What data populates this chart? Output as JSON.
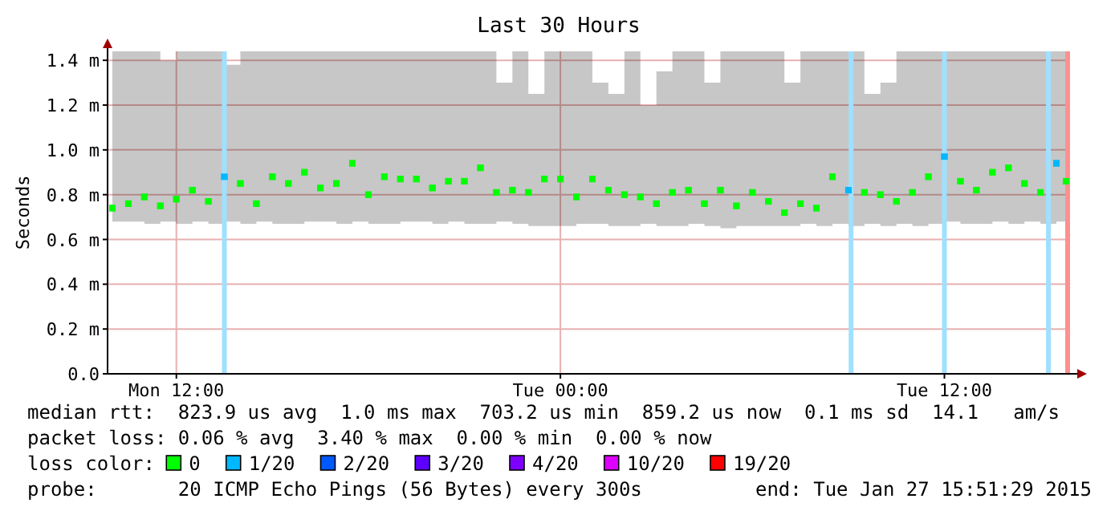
{
  "chart_data": {
    "type": "scatter",
    "title": "Last 30 Hours",
    "ylabel": "Seconds",
    "marker": "square",
    "grid": true,
    "legend": "bottom",
    "legend_title": "loss color:",
    "x": [
      "2015-01-26T10:00",
      "2015-01-26T10:30",
      "2015-01-26T11:00",
      "2015-01-26T11:30",
      "2015-01-26T12:00",
      "2015-01-26T12:30",
      "2015-01-26T13:00",
      "2015-01-26T13:30",
      "2015-01-26T14:00",
      "2015-01-26T14:30",
      "2015-01-26T15:00",
      "2015-01-26T15:30",
      "2015-01-26T16:00",
      "2015-01-26T16:30",
      "2015-01-26T17:00",
      "2015-01-26T17:30",
      "2015-01-26T18:00",
      "2015-01-26T18:30",
      "2015-01-26T19:00",
      "2015-01-26T19:30",
      "2015-01-26T20:00",
      "2015-01-26T20:30",
      "2015-01-26T21:00",
      "2015-01-26T21:30",
      "2015-01-26T22:00",
      "2015-01-26T22:30",
      "2015-01-26T23:00",
      "2015-01-26T23:30",
      "2015-01-27T00:00",
      "2015-01-27T00:30",
      "2015-01-27T01:00",
      "2015-01-27T01:30",
      "2015-01-27T02:00",
      "2015-01-27T02:30",
      "2015-01-27T03:00",
      "2015-01-27T03:30",
      "2015-01-27T04:00",
      "2015-01-27T04:30",
      "2015-01-27T05:00",
      "2015-01-27T05:30",
      "2015-01-27T06:00",
      "2015-01-27T06:30",
      "2015-01-27T07:00",
      "2015-01-27T07:30",
      "2015-01-27T08:00",
      "2015-01-27T08:30",
      "2015-01-27T09:00",
      "2015-01-27T09:30",
      "2015-01-27T10:00",
      "2015-01-27T10:30",
      "2015-01-27T11:00",
      "2015-01-27T11:30",
      "2015-01-27T12:00",
      "2015-01-27T12:30",
      "2015-01-27T13:00",
      "2015-01-27T13:30",
      "2015-01-27T14:00",
      "2015-01-27T14:30",
      "2015-01-27T15:00",
      "2015-01-27T15:30",
      "2015-01-27T15:48"
    ],
    "xlim": [
      "2015-01-26T09:51",
      "2015-01-27T15:51"
    ],
    "xticks": [
      {
        "value": "2015-01-26T12:00",
        "label": "Mon 12:00"
      },
      {
        "value": "2015-01-27T00:00",
        "label": "Tue 00:00"
      },
      {
        "value": "2015-01-27T12:00",
        "label": "Tue 12:00"
      }
    ],
    "ylim": [
      0,
      1.44
    ],
    "yticks": [
      {
        "value": 0,
        "label": "0.0"
      },
      {
        "value": 0.2,
        "label": "0.2 m"
      },
      {
        "value": 0.4,
        "label": "0.4 m"
      },
      {
        "value": 0.6,
        "label": "0.6 m"
      },
      {
        "value": 0.8,
        "label": "0.8 m"
      },
      {
        "value": 1.0,
        "label": "1.0 m"
      },
      {
        "value": 1.2,
        "label": "1.2 m"
      },
      {
        "value": 1.4,
        "label": "1.4 m"
      }
    ],
    "series": [
      {
        "name": "0",
        "color": "#00ff00",
        "values": [
          0.74,
          0.76,
          0.79,
          0.75,
          0.78,
          0.82,
          0.77,
          null,
          0.85,
          0.76,
          0.88,
          0.85,
          0.9,
          0.83,
          0.85,
          0.94,
          0.8,
          0.88,
          0.87,
          0.87,
          0.83,
          0.86,
          0.86,
          0.92,
          0.81,
          0.82,
          0.81,
          0.87,
          0.87,
          0.79,
          0.87,
          0.82,
          0.8,
          0.79,
          0.76,
          0.81,
          0.82,
          0.76,
          0.82,
          0.75,
          0.81,
          0.77,
          0.72,
          0.76,
          0.74,
          0.88,
          null,
          0.81,
          0.8,
          0.77,
          0.81,
          0.88,
          null,
          0.86,
          0.82,
          0.9,
          0.92,
          0.85,
          0.81,
          null,
          0.86
        ],
        "lower": [
          0.68,
          0.68,
          0.67,
          0.68,
          0.67,
          0.68,
          0.67,
          0.68,
          0.67,
          0.68,
          0.67,
          0.67,
          0.68,
          0.68,
          0.67,
          0.68,
          0.67,
          0.67,
          0.68,
          0.68,
          0.67,
          0.68,
          0.67,
          0.67,
          0.68,
          0.67,
          0.66,
          0.66,
          0.66,
          0.67,
          0.67,
          0.66,
          0.66,
          0.67,
          0.66,
          0.66,
          0.67,
          0.66,
          0.65,
          0.66,
          0.66,
          0.66,
          0.66,
          0.67,
          0.66,
          0.67,
          0.66,
          0.67,
          0.66,
          0.67,
          0.66,
          0.67,
          0.68,
          0.67,
          0.67,
          0.68,
          0.67,
          0.68,
          0.67,
          0.68,
          0.68
        ],
        "upper": [
          1.44,
          1.44,
          1.44,
          1.4,
          1.44,
          1.44,
          1.44,
          1.38,
          1.44,
          1.44,
          1.44,
          1.44,
          1.44,
          1.44,
          1.44,
          1.44,
          1.44,
          1.44,
          1.44,
          1.44,
          1.44,
          1.44,
          1.44,
          1.44,
          1.3,
          1.44,
          1.25,
          1.44,
          1.44,
          1.44,
          1.3,
          1.25,
          1.44,
          1.2,
          1.35,
          1.44,
          1.44,
          1.3,
          1.44,
          1.44,
          1.44,
          1.44,
          1.3,
          1.44,
          1.44,
          1.44,
          1.44,
          1.25,
          1.3,
          1.44,
          1.44,
          1.44,
          1.44,
          1.44,
          1.44,
          1.44,
          1.44,
          1.44,
          1.44,
          1.44,
          1.44
        ]
      },
      {
        "name": "1/20",
        "color": "#00b8ff",
        "values": [
          null,
          null,
          null,
          null,
          null,
          null,
          null,
          0.88,
          null,
          null,
          null,
          null,
          null,
          null,
          null,
          null,
          null,
          null,
          null,
          null,
          null,
          null,
          null,
          null,
          null,
          null,
          null,
          null,
          null,
          null,
          null,
          null,
          null,
          null,
          null,
          null,
          null,
          null,
          null,
          null,
          null,
          null,
          null,
          null,
          null,
          null,
          0.82,
          null,
          null,
          null,
          null,
          null,
          0.97,
          null,
          null,
          null,
          null,
          null,
          null,
          0.94,
          null
        ]
      },
      {
        "name": "2/20",
        "color": "#0059ff",
        "values": [
          null,
          null,
          null,
          null,
          null,
          null,
          null,
          null,
          null,
          null,
          null,
          null,
          null,
          null,
          null,
          null,
          null,
          null,
          null,
          null,
          null,
          null,
          null,
          null,
          null,
          null,
          null,
          null,
          null,
          null,
          null,
          null,
          null,
          null,
          null,
          null,
          null,
          null,
          null,
          null,
          null,
          null,
          null,
          null,
          null,
          null,
          null,
          null,
          null,
          null,
          null,
          null,
          null,
          null,
          null,
          null,
          null,
          null,
          null,
          null,
          null
        ]
      },
      {
        "name": "3/20",
        "color": "#5e00ff",
        "values": [
          null,
          null,
          null,
          null,
          null,
          null,
          null,
          null,
          null,
          null,
          null,
          null,
          null,
          null,
          null,
          null,
          null,
          null,
          null,
          null,
          null,
          null,
          null,
          null,
          null,
          null,
          null,
          null,
          null,
          null,
          null,
          null,
          null,
          null,
          null,
          null,
          null,
          null,
          null,
          null,
          null,
          null,
          null,
          null,
          null,
          null,
          null,
          null,
          null,
          null,
          null,
          null,
          null,
          null,
          null,
          null,
          null,
          null,
          null,
          null,
          null
        ]
      },
      {
        "name": "4/20",
        "color": "#7e00ff",
        "values": [
          null,
          null,
          null,
          null,
          null,
          null,
          null,
          null,
          null,
          null,
          null,
          null,
          null,
          null,
          null,
          null,
          null,
          null,
          null,
          null,
          null,
          null,
          null,
          null,
          null,
          null,
          null,
          null,
          null,
          null,
          null,
          null,
          null,
          null,
          null,
          null,
          null,
          null,
          null,
          null,
          null,
          null,
          null,
          null,
          null,
          null,
          null,
          null,
          null,
          null,
          null,
          null,
          null,
          null,
          null,
          null,
          null,
          null,
          null,
          null,
          null
        ]
      },
      {
        "name": "10/20",
        "color": "#dd00ff",
        "values": [
          null,
          null,
          null,
          null,
          null,
          null,
          null,
          null,
          null,
          null,
          null,
          null,
          null,
          null,
          null,
          null,
          null,
          null,
          null,
          null,
          null,
          null,
          null,
          null,
          null,
          null,
          null,
          null,
          null,
          null,
          null,
          null,
          null,
          null,
          null,
          null,
          null,
          null,
          null,
          null,
          null,
          null,
          null,
          null,
          null,
          null,
          null,
          null,
          null,
          null,
          null,
          null,
          null,
          null,
          null,
          null,
          null,
          null,
          null,
          null,
          null
        ]
      },
      {
        "name": "19/20",
        "color": "#ff0000",
        "values": [
          null,
          null,
          null,
          null,
          null,
          null,
          null,
          null,
          null,
          null,
          null,
          null,
          null,
          null,
          null,
          null,
          null,
          null,
          null,
          null,
          null,
          null,
          null,
          null,
          null,
          null,
          null,
          null,
          null,
          null,
          null,
          null,
          null,
          null,
          null,
          null,
          null,
          null,
          null,
          null,
          null,
          null,
          null,
          null,
          null,
          null,
          null,
          null,
          null,
          null,
          null,
          null,
          null,
          null,
          null,
          null,
          null,
          null,
          null,
          null,
          null
        ]
      }
    ],
    "ref_lines": [
      {
        "axis": "x",
        "value": "2015-01-26T13:30",
        "color": "#a0e0ff"
      },
      {
        "axis": "x",
        "value": "2015-01-27T09:05",
        "color": "#a0e0ff"
      },
      {
        "axis": "x",
        "value": "2015-01-27T12:00",
        "color": "#a0e0ff"
      },
      {
        "axis": "x",
        "value": "2015-01-27T15:15",
        "color": "#a0e0ff"
      },
      {
        "axis": "x",
        "value": "2015-01-27T15:51",
        "color": "#ff9090"
      }
    ],
    "annotations": [
      "median rtt:  823.9 us avg  1.0 ms max  703.2 us min  859.2 us now  0.1 ms sd  14.1   am/s",
      "packet loss: 0.06 % avg  3.40 % max  0.00 % min  0.00 % now",
      "probe:       20 ICMP Echo Pings (56 Bytes) every 300s",
      "end: Tue Jan 27 15:51:29 2015"
    ]
  }
}
